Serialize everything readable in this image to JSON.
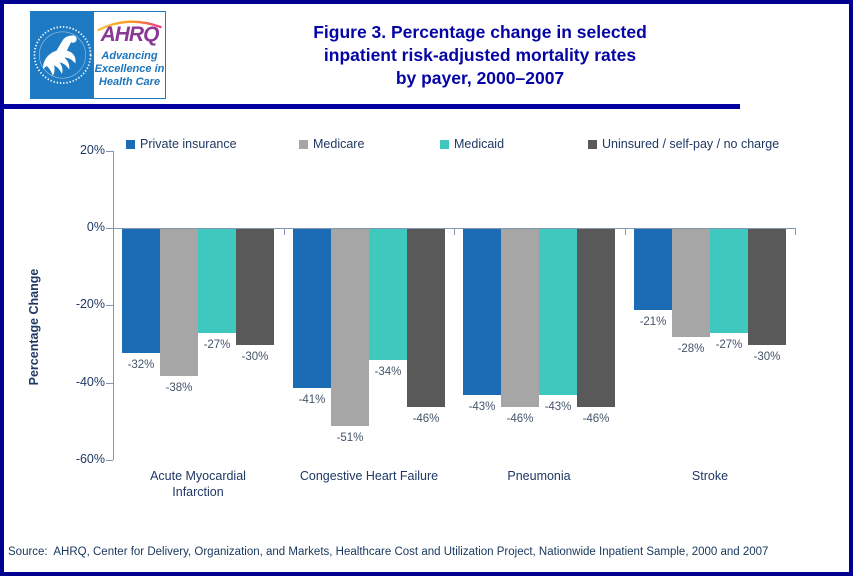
{
  "header": {
    "logo": {
      "hhs_seal_label": "HHS seal",
      "ahrq_acronym": "AHRQ",
      "tagline": [
        "Advancing",
        "Excellence in",
        "Health Care"
      ]
    },
    "title_lines": [
      "Figure 3. Percentage change in selected",
      "inpatient risk-adjusted mortality rates",
      "by payer, 2000–2007"
    ]
  },
  "chart_data": {
    "type": "bar",
    "title": "Figure 3. Percentage change in selected inpatient risk-adjusted mortality rates by payer, 2000–2007",
    "categories": [
      [
        "Acute Myocardial",
        "Infarction"
      ],
      [
        "Congestive Heart Failure"
      ],
      [
        "Pneumonia"
      ],
      [
        "Stroke"
      ]
    ],
    "series": [
      {
        "name": "Private insurance",
        "color": "#1B6CB5",
        "values": [
          -32,
          -41,
          -43,
          -21
        ]
      },
      {
        "name": "Medicare",
        "color": "#A6A6A6",
        "values": [
          -38,
          -51,
          -46,
          -28
        ]
      },
      {
        "name": "Medicaid",
        "color": "#3FC8BD",
        "values": [
          -27,
          -34,
          -43,
          -27
        ]
      },
      {
        "name": "Uninsured / self-pay / no charge",
        "color": "#595959",
        "values": [
          -30,
          -46,
          -46,
          -30
        ]
      }
    ],
    "value_label_suffix": "%",
    "ylabel": "Percentage Change",
    "ylim": [
      -60,
      20
    ],
    "yticks": [
      {
        "value": 20,
        "label": "20%"
      },
      {
        "value": 0,
        "label": "0%"
      },
      {
        "value": -20,
        "label": "-20%"
      },
      {
        "value": -40,
        "label": "-40%"
      },
      {
        "value": -60,
        "label": "-60%"
      }
    ],
    "legend_position": "top",
    "grid": false,
    "data_labels": true
  },
  "footer": {
    "source": "Source:  AHRQ, Center for Delivery, Organization, and Markets, Healthcare Cost and Utilization Project, Nationwide Inpatient Sample, 2000 and 2007"
  },
  "colors": {
    "page_border": "#00008F",
    "title_text": "#0505A5",
    "divider": "#0000A0",
    "axis_line": "#8496B0",
    "axis_text": "#1F3864",
    "value_label_text": "#44546A",
    "source_text": "#17375D",
    "logo_blue": "#1E7AC2",
    "logo_purple": "#8A3A96",
    "logo_tagline_blue": "#1B75BC"
  }
}
